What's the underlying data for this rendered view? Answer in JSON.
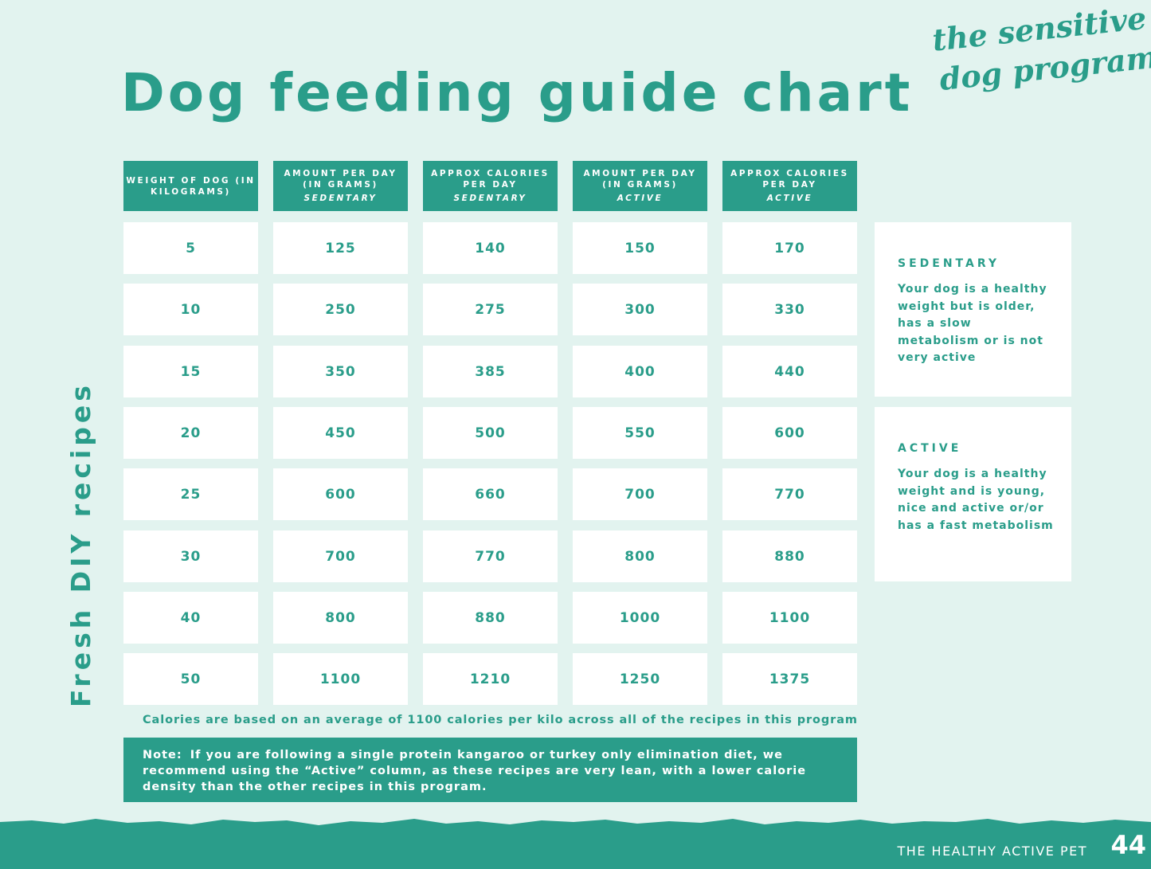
{
  "title": "Dog feeding guide chart",
  "brand": {
    "line1": "the sensitive",
    "line2": "dog program"
  },
  "side_label": "Fresh DIY recipes",
  "headers": [
    {
      "main": "Weight of dog (in kilograms)",
      "sub": ""
    },
    {
      "main": "Amount per day (in grams)",
      "sub": "Sedentary"
    },
    {
      "main": "Approx calories per day",
      "sub": "Sedentary"
    },
    {
      "main": "Amount per day (in grams)",
      "sub": "Active"
    },
    {
      "main": "Approx calories per day",
      "sub": "Active"
    }
  ],
  "rows": [
    [
      "5",
      "125",
      "140",
      "150",
      "170"
    ],
    [
      "10",
      "250",
      "275",
      "300",
      "330"
    ],
    [
      "15",
      "350",
      "385",
      "400",
      "440"
    ],
    [
      "20",
      "450",
      "500",
      "550",
      "600"
    ],
    [
      "25",
      "600",
      "660",
      "700",
      "770"
    ],
    [
      "30",
      "700",
      "770",
      "800",
      "880"
    ],
    [
      "40",
      "800",
      "880",
      "1000",
      "1100"
    ],
    [
      "50",
      "1100",
      "1210",
      "1250",
      "1375"
    ]
  ],
  "legend": {
    "sedentary": {
      "heading": "SEDENTARY",
      "text": "Your dog is a healthy weight but is older, has a slow metabolism or is not very active"
    },
    "active": {
      "heading": "ACTIVE",
      "text": "Your dog is a healthy weight and is young, nice and active or/or has a fast metabolism"
    }
  },
  "footnote": "Calories are based on an average of 1100 calories per kilo across all of the recipes in this program",
  "note": {
    "label": "Note:",
    "text": "If you are following a single protein kangaroo or turkey only elimination diet, we recommend using the “Active” column, as these recipes are very lean, with a lower calorie density than the other recipes in this program."
  },
  "footer": {
    "publisher": "THE HEALTHY ACTIVE PET",
    "page": "44"
  },
  "colors": {
    "accent": "#2a9d8a",
    "background": "#e2f3ef",
    "cell": "#ffffff"
  }
}
